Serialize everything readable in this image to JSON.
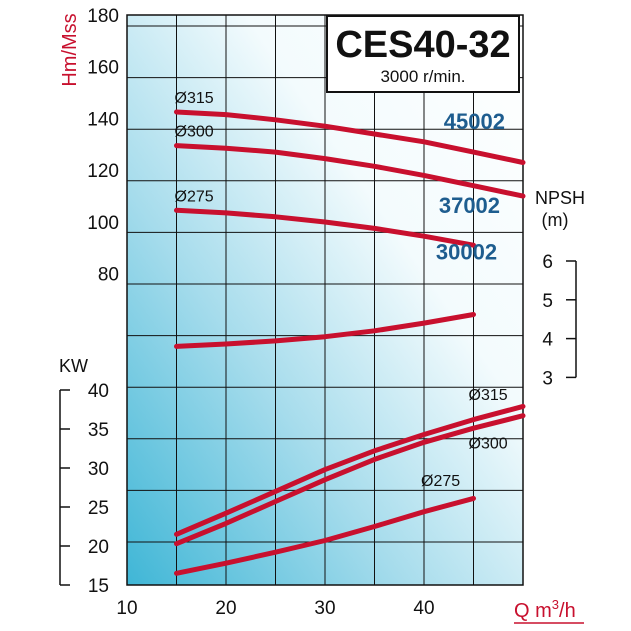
{
  "chart_data": {
    "type": "line",
    "title": "CES40-32",
    "subtitle": "3000 r/min.",
    "colors": {
      "curve": "#c8102e",
      "model": "#1e5d8f",
      "grid": "#111111",
      "background_gradient": [
        "#3fb6d6",
        "#ffffff"
      ]
    },
    "x": {
      "label": "Q m³/h",
      "label_main": "Q m",
      "label_sup": "3",
      "label_end": "/h",
      "range": [
        10,
        50
      ],
      "ticks": [
        10,
        20,
        30,
        40
      ],
      "tick_labels": [
        "10",
        "20",
        "30",
        "40"
      ],
      "grid": [
        15,
        20,
        25,
        30,
        35,
        40,
        45
      ]
    },
    "head": {
      "label": "Hm/Mss",
      "range": [
        50,
        180
      ],
      "ticks": [
        80,
        100,
        120,
        140,
        160,
        180
      ],
      "tick_labels": [
        "80",
        "100",
        "120",
        "140",
        "160",
        "180"
      ]
    },
    "npsh": {
      "label_line1": "NPSH",
      "label_line2": "(m)",
      "ticks": [
        3,
        4,
        5,
        6
      ],
      "tick_labels": [
        "3",
        "4",
        "5",
        "6"
      ]
    },
    "power": {
      "label": "KW",
      "ticks": [
        15,
        20,
        25,
        30,
        35,
        40
      ],
      "tick_labels": [
        "15",
        "20",
        "25",
        "30",
        "35",
        "40"
      ]
    },
    "head_series": [
      {
        "name": "Ø315",
        "model": "45002",
        "x": [
          15,
          20,
          25,
          30,
          35,
          40,
          45,
          50
        ],
        "y": [
          142.5,
          141.5,
          139.5,
          137,
          134,
          131,
          127,
          123
        ]
      },
      {
        "name": "Ø300",
        "model": "37002",
        "x": [
          15,
          20,
          25,
          30,
          35,
          40,
          45,
          50
        ],
        "y": [
          129.5,
          128.5,
          127,
          124.5,
          121.5,
          118,
          114,
          110
        ]
      },
      {
        "name": "Ø275",
        "model": "30002",
        "x": [
          15,
          20,
          25,
          30,
          35,
          40,
          45
        ],
        "y": [
          104.5,
          103.5,
          102,
          100,
          97.5,
          94.5,
          91
        ]
      }
    ],
    "npsh_series": [
      {
        "x": [
          15,
          20,
          25,
          30,
          35,
          40,
          45
        ],
        "y": [
          3.8,
          3.86,
          3.94,
          4.05,
          4.2,
          4.4,
          4.62
        ]
      }
    ],
    "power_series": [
      {
        "name": "Ø315",
        "x": [
          15,
          20,
          25,
          30,
          35,
          40,
          45,
          50
        ],
        "y": [
          21.5,
          24.2,
          27,
          29.8,
          32.2,
          34.3,
          36.2,
          37.9
        ]
      },
      {
        "name": "Ø300",
        "x": [
          15,
          20,
          25,
          30,
          35,
          40,
          45,
          50
        ],
        "y": [
          20.3,
          22.9,
          25.7,
          28.5,
          31.1,
          33.3,
          35.1,
          36.7
        ]
      },
      {
        "name": "Ø275",
        "x": [
          15,
          20,
          25,
          30,
          35,
          40,
          45
        ],
        "y": [
          16.5,
          17.8,
          19.2,
          20.7,
          22.5,
          24.4,
          26.1
        ]
      }
    ],
    "labels": {
      "head_diameters": [
        "Ø315",
        "Ø300",
        "Ø275"
      ],
      "models": [
        "45002",
        "37002",
        "30002"
      ],
      "power_diameters": [
        "Ø315",
        "Ø300",
        "Ø275"
      ]
    }
  }
}
